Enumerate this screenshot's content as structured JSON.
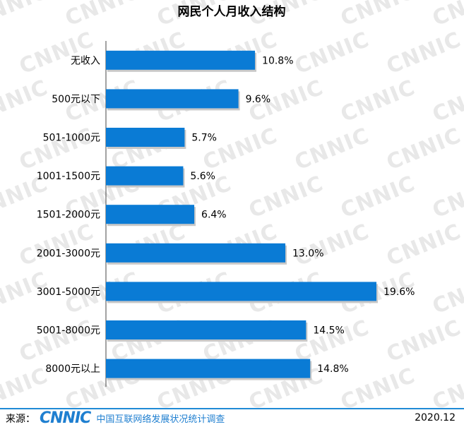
{
  "chart_data": {
    "type": "bar",
    "orientation": "horizontal",
    "title": "网民个人月收入结构",
    "categories": [
      "无收入",
      "500元以下",
      "501-1000元",
      "1001-1500元",
      "1501-2000元",
      "2001-3000元",
      "3001-5000元",
      "5001-8000元",
      "8000元以上"
    ],
    "values": [
      10.8,
      9.6,
      5.7,
      5.6,
      6.4,
      13.0,
      19.6,
      14.5,
      14.8
    ],
    "data_labels": [
      "10.8%",
      "9.6%",
      "5.7%",
      "5.6%",
      "6.4%",
      "13.0%",
      "19.6%",
      "14.5%",
      "14.8%"
    ],
    "xlim": [
      0,
      20
    ],
    "grid": false,
    "legend": "none",
    "bar_color": "#0a7bd5"
  },
  "watermark_text": "CNNIC",
  "footer": {
    "source_label": "来源：",
    "logo_text": "CNNIC",
    "org_text": "中国互联网络发展状况统计调查",
    "date": "2020.12"
  },
  "colors": {
    "accent": "#1f8ad6",
    "bar": "#0a7bd5",
    "shadow": "#c8c8c8"
  }
}
